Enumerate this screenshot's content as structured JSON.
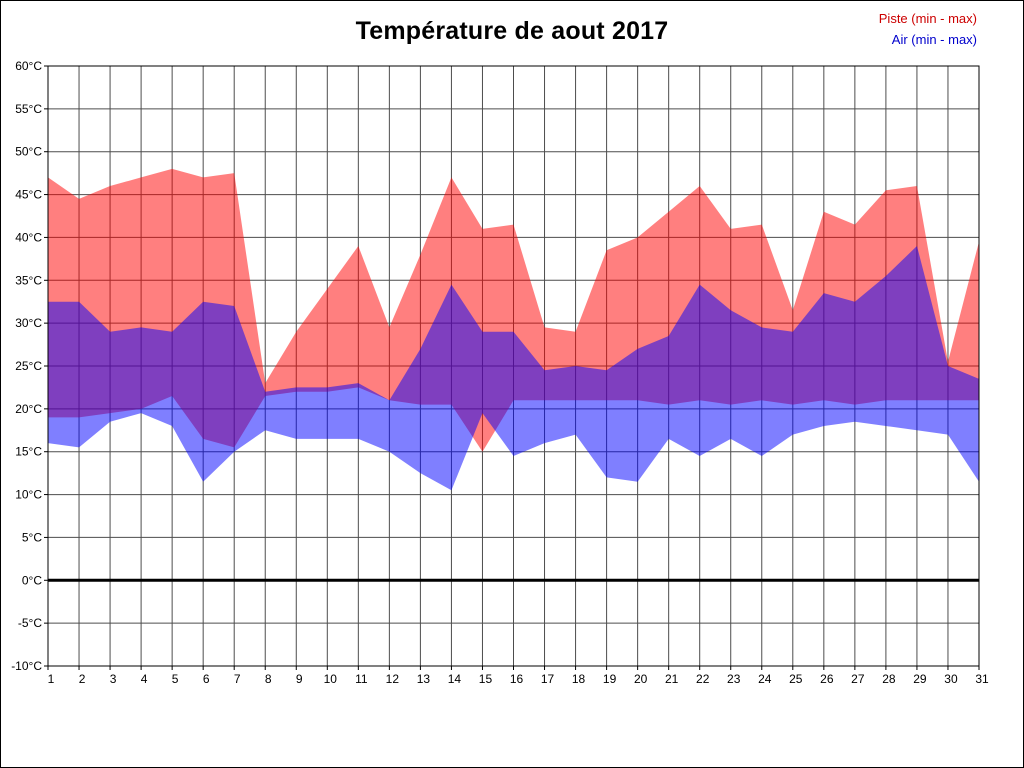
{
  "chart_data": {
    "type": "area",
    "title": "Température de aout 2017",
    "x": [
      1,
      2,
      3,
      4,
      5,
      6,
      7,
      8,
      9,
      10,
      11,
      12,
      13,
      14,
      15,
      16,
      17,
      18,
      19,
      20,
      21,
      22,
      23,
      24,
      25,
      26,
      27,
      28,
      29,
      30,
      31
    ],
    "x_tick_labels": [
      "1",
      "2",
      "3",
      "4",
      "5",
      "6",
      "7",
      "8",
      "9",
      "10",
      "11",
      "12",
      "13",
      "14",
      "15",
      "16",
      "17",
      "18",
      "19",
      "20",
      "21",
      "22",
      "23",
      "24",
      "25",
      "26",
      "27",
      "28",
      "29",
      "30",
      "31"
    ],
    "series": [
      {
        "name": "Piste max",
        "values": [
          47,
          44.5,
          46,
          47,
          48,
          47,
          47.5,
          23,
          29,
          34,
          39,
          29.5,
          38,
          47,
          41,
          41.5,
          29.5,
          29,
          38.5,
          40,
          43,
          46,
          41,
          41.5,
          31.5,
          43,
          41.5,
          45.5,
          46,
          25.5,
          39.5
        ]
      },
      {
        "name": "Piste min",
        "values": [
          19,
          19,
          19.5,
          20,
          21.5,
          16.5,
          15.5,
          21.5,
          22,
          22,
          22.5,
          21,
          20.5,
          20.5,
          15,
          21,
          21,
          21,
          21,
          21,
          20.5,
          21,
          20.5,
          21,
          20.5,
          21,
          20.5,
          21,
          21,
          21,
          21
        ]
      },
      {
        "name": "Air max",
        "values": [
          32.5,
          32.5,
          29,
          29.5,
          29,
          32.5,
          32,
          22,
          22.5,
          22.5,
          23,
          21,
          27,
          34.5,
          29,
          29,
          24.5,
          25,
          24.5,
          27,
          28.5,
          34.5,
          31.5,
          29.5,
          29,
          33.5,
          32.5,
          35.5,
          39,
          25,
          23.5
        ]
      },
      {
        "name": "Air min",
        "values": [
          16,
          15.5,
          18.5,
          19.5,
          18,
          11.5,
          15,
          17.5,
          16.5,
          16.5,
          16.5,
          15,
          12.5,
          10.5,
          19.5,
          14.5,
          16,
          17,
          12,
          11.5,
          16.5,
          14.5,
          16.5,
          14.5,
          17,
          18,
          18.5,
          18,
          17.5,
          17,
          11.5
        ]
      }
    ],
    "bands": [
      {
        "label": "Piste (min - max)",
        "min": "Piste min",
        "max": "Piste max",
        "fill": "#ff0000",
        "opacity": 0.5,
        "text_color": "#cc0000"
      },
      {
        "label": "Air (min - max)",
        "min": "Air min",
        "max": "Air max",
        "fill": "#0000ff",
        "opacity": 0.5,
        "text_color": "#0000cc"
      }
    ],
    "ylim": [
      -10,
      60
    ],
    "y_tick_values": [
      60,
      55,
      50,
      45,
      40,
      35,
      30,
      25,
      20,
      15,
      10,
      5,
      0,
      -5,
      -10
    ],
    "y_ticks": [
      "60°C",
      "55°C",
      "50°C",
      "45°C",
      "40°C",
      "35°C",
      "30°C",
      "25°C",
      "20°C",
      "15°C",
      "10°C",
      "5°C",
      "0°C",
      "-5°C",
      "-10°C"
    ],
    "grid": true,
    "zero_line_value": 0,
    "legend_position": "top-right",
    "colors": {
      "grid": "#4d4d4d",
      "zero_line": "#000000",
      "plot_border": "#000000",
      "tick_text": "#000000"
    }
  }
}
